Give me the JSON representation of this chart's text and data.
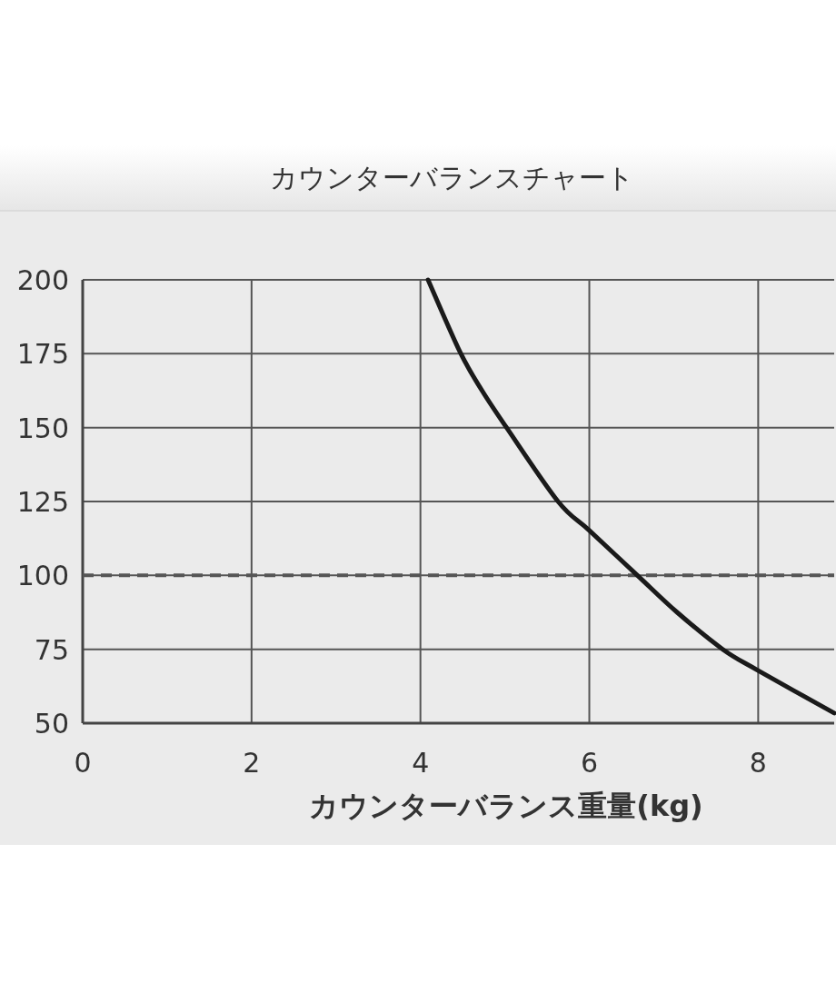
{
  "chart_data": {
    "type": "line",
    "title": "カウンターバランスチャート",
    "xlabel": "カウンターバランス重量(kg)",
    "x": [
      4.09,
      4.47,
      4.73,
      5.02,
      5.63,
      6.0,
      6.57,
      7.04,
      7.58,
      8.0,
      8.9
    ],
    "series": [
      {
        "color": "#1a1a1a",
        "values": [
          200,
          175.5,
          162.5,
          150,
          125,
          115.2,
          100,
          87.5,
          75,
          67.8,
          53.4
        ]
      }
    ],
    "xlim": [
      0,
      8.9
    ],
    "ylim": [
      50,
      200
    ],
    "xticks": [
      0,
      2,
      4,
      6,
      8
    ],
    "yticks": [
      50,
      75,
      100,
      125,
      150,
      175,
      200
    ],
    "grid": true,
    "ref_lines": [
      {
        "axis": "y",
        "value": 100,
        "color": "#555555",
        "line_style": "dashed"
      }
    ]
  }
}
